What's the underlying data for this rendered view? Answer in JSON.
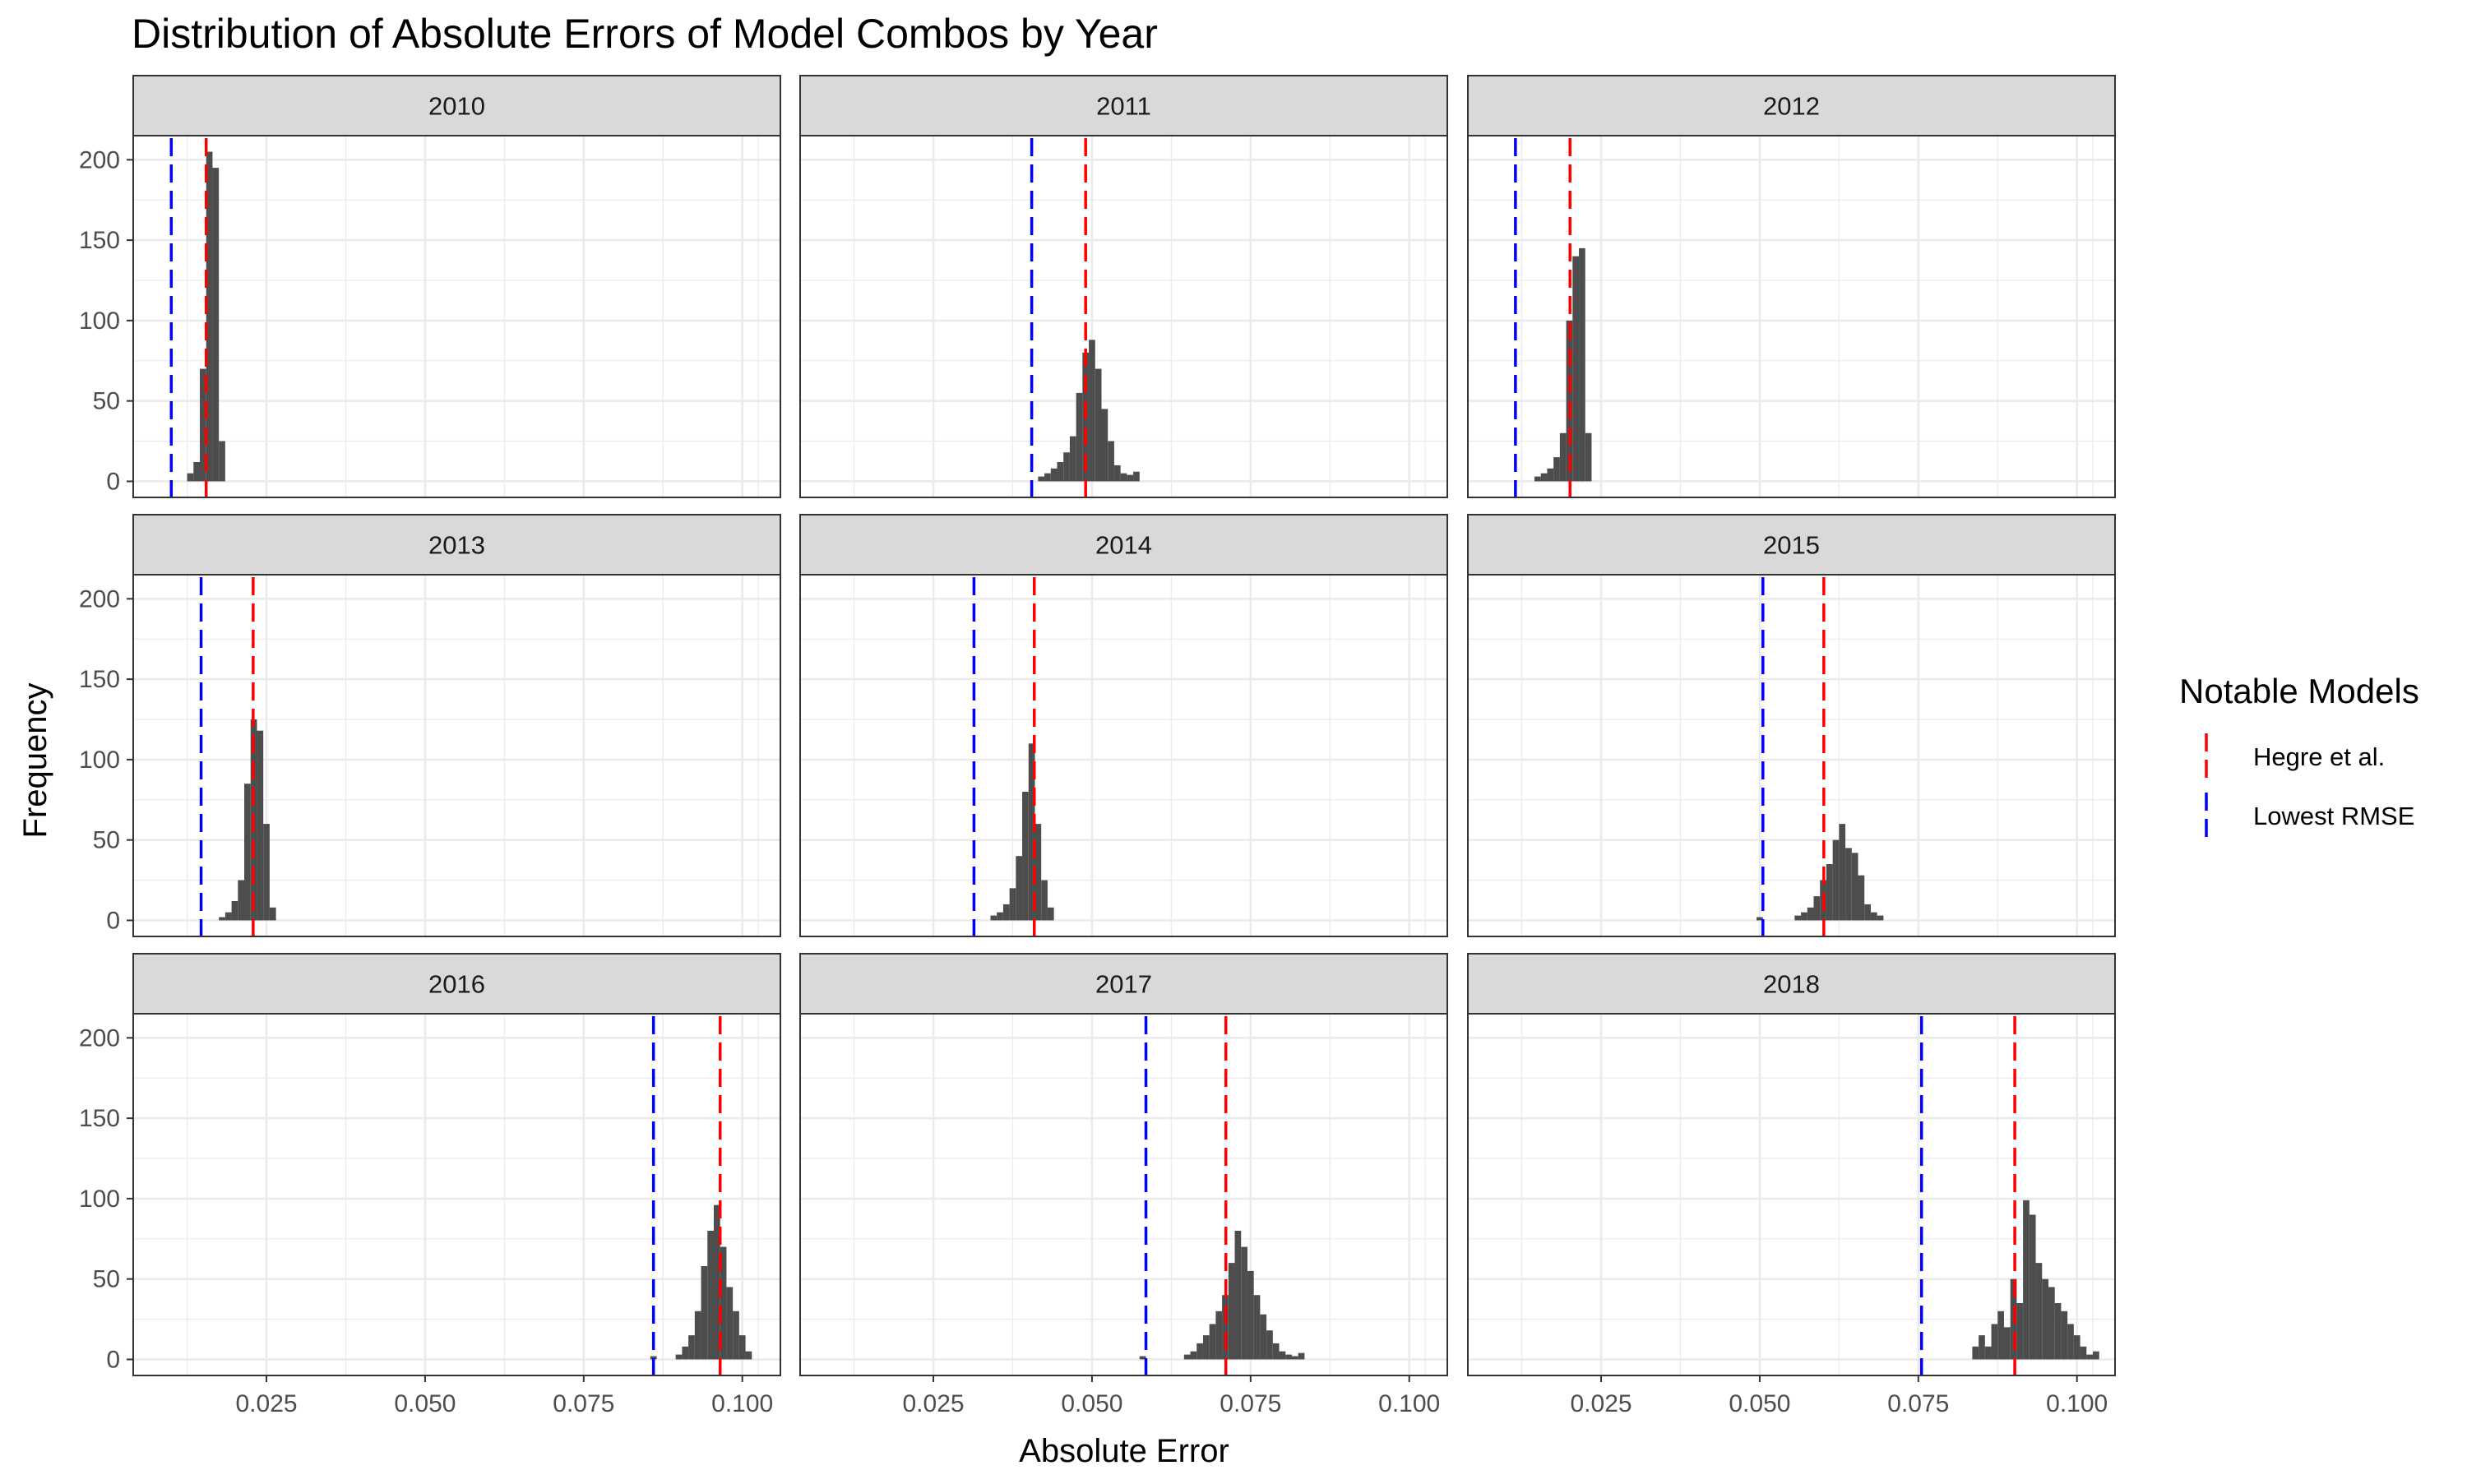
{
  "chart_data": {
    "type": "bar",
    "subtype": "faceted-histogram",
    "title": "Distribution of Absolute Errors of Model Combos by Year",
    "xlabel": "Absolute Error",
    "ylabel": "Frequency",
    "xlim": [
      0.004,
      0.106
    ],
    "ylim": [
      -10,
      215
    ],
    "x_ticks": [
      0.025,
      0.05,
      0.075,
      0.1
    ],
    "x_tick_labels": [
      "0.025",
      "0.050",
      "0.075",
      "0.100"
    ],
    "y_ticks": [
      0,
      50,
      100,
      150,
      200
    ],
    "y_tick_labels": [
      "0",
      "50",
      "100",
      "150",
      "200"
    ],
    "bin_width": 0.001,
    "grid": true,
    "legend": {
      "title": "Notable Models",
      "position": "right",
      "entries": [
        {
          "label": "Hegre et al.",
          "color": "#ff0000",
          "style": "dashed"
        },
        {
          "label": "Lowest RMSE",
          "color": "#0000ff",
          "style": "dashed"
        }
      ]
    },
    "facets": [
      {
        "label": "2010",
        "bin_start": 0.0125,
        "counts": [
          5,
          12,
          70,
          205,
          195,
          25
        ],
        "hegre": 0.0155,
        "lowest_rmse": 0.01
      },
      {
        "label": "2011",
        "bin_start": 0.0415,
        "counts": [
          3,
          5,
          8,
          12,
          18,
          28,
          55,
          80,
          88,
          70,
          45,
          25,
          10,
          5,
          4,
          6
        ],
        "hegre": 0.049,
        "lowest_rmse": 0.0405
      },
      {
        "label": "2012",
        "bin_start": 0.0145,
        "counts": [
          3,
          5,
          8,
          15,
          30,
          100,
          140,
          145,
          30
        ],
        "hegre": 0.0201,
        "lowest_rmse": 0.0115
      },
      {
        "label": "2013",
        "bin_start": 0.0175,
        "counts": [
          2,
          5,
          12,
          25,
          85,
          125,
          118,
          60,
          8
        ],
        "hegre": 0.0229,
        "lowest_rmse": 0.0147
      },
      {
        "label": "2014",
        "bin_start": 0.034,
        "counts": [
          3,
          5,
          10,
          20,
          40,
          80,
          110,
          60,
          25,
          8
        ],
        "hegre": 0.0409,
        "lowest_rmse": 0.0314
      },
      {
        "label": "2015",
        "bin_start": 0.0495,
        "counts": [
          2,
          0,
          0,
          0,
          0,
          0,
          3,
          5,
          8,
          15,
          25,
          35,
          50,
          60,
          45,
          42,
          28,
          10,
          5,
          3
        ],
        "hegre": 0.0601,
        "lowest_rmse": 0.0505
      },
      {
        "label": "2016",
        "bin_start": 0.0855,
        "counts": [
          2,
          0,
          0,
          0,
          3,
          8,
          15,
          30,
          58,
          80,
          96,
          70,
          45,
          30,
          15,
          5
        ],
        "hegre": 0.0965,
        "lowest_rmse": 0.086
      },
      {
        "label": "2017",
        "bin_start": 0.0575,
        "counts": [
          2,
          0,
          0,
          0,
          0,
          0,
          0,
          3,
          5,
          10,
          15,
          22,
          30,
          40,
          60,
          80,
          70,
          55,
          40,
          28,
          18,
          10,
          5,
          3,
          2,
          4
        ],
        "hegre": 0.0711,
        "lowest_rmse": 0.0585
      },
      {
        "label": "2018",
        "bin_start": 0.0835,
        "counts": [
          8,
          15,
          8,
          22,
          30,
          20,
          50,
          35,
          99,
          90,
          60,
          50,
          45,
          35,
          30,
          22,
          15,
          8,
          3,
          5
        ],
        "hegre": 0.0902,
        "lowest_rmse": 0.0755
      }
    ]
  }
}
